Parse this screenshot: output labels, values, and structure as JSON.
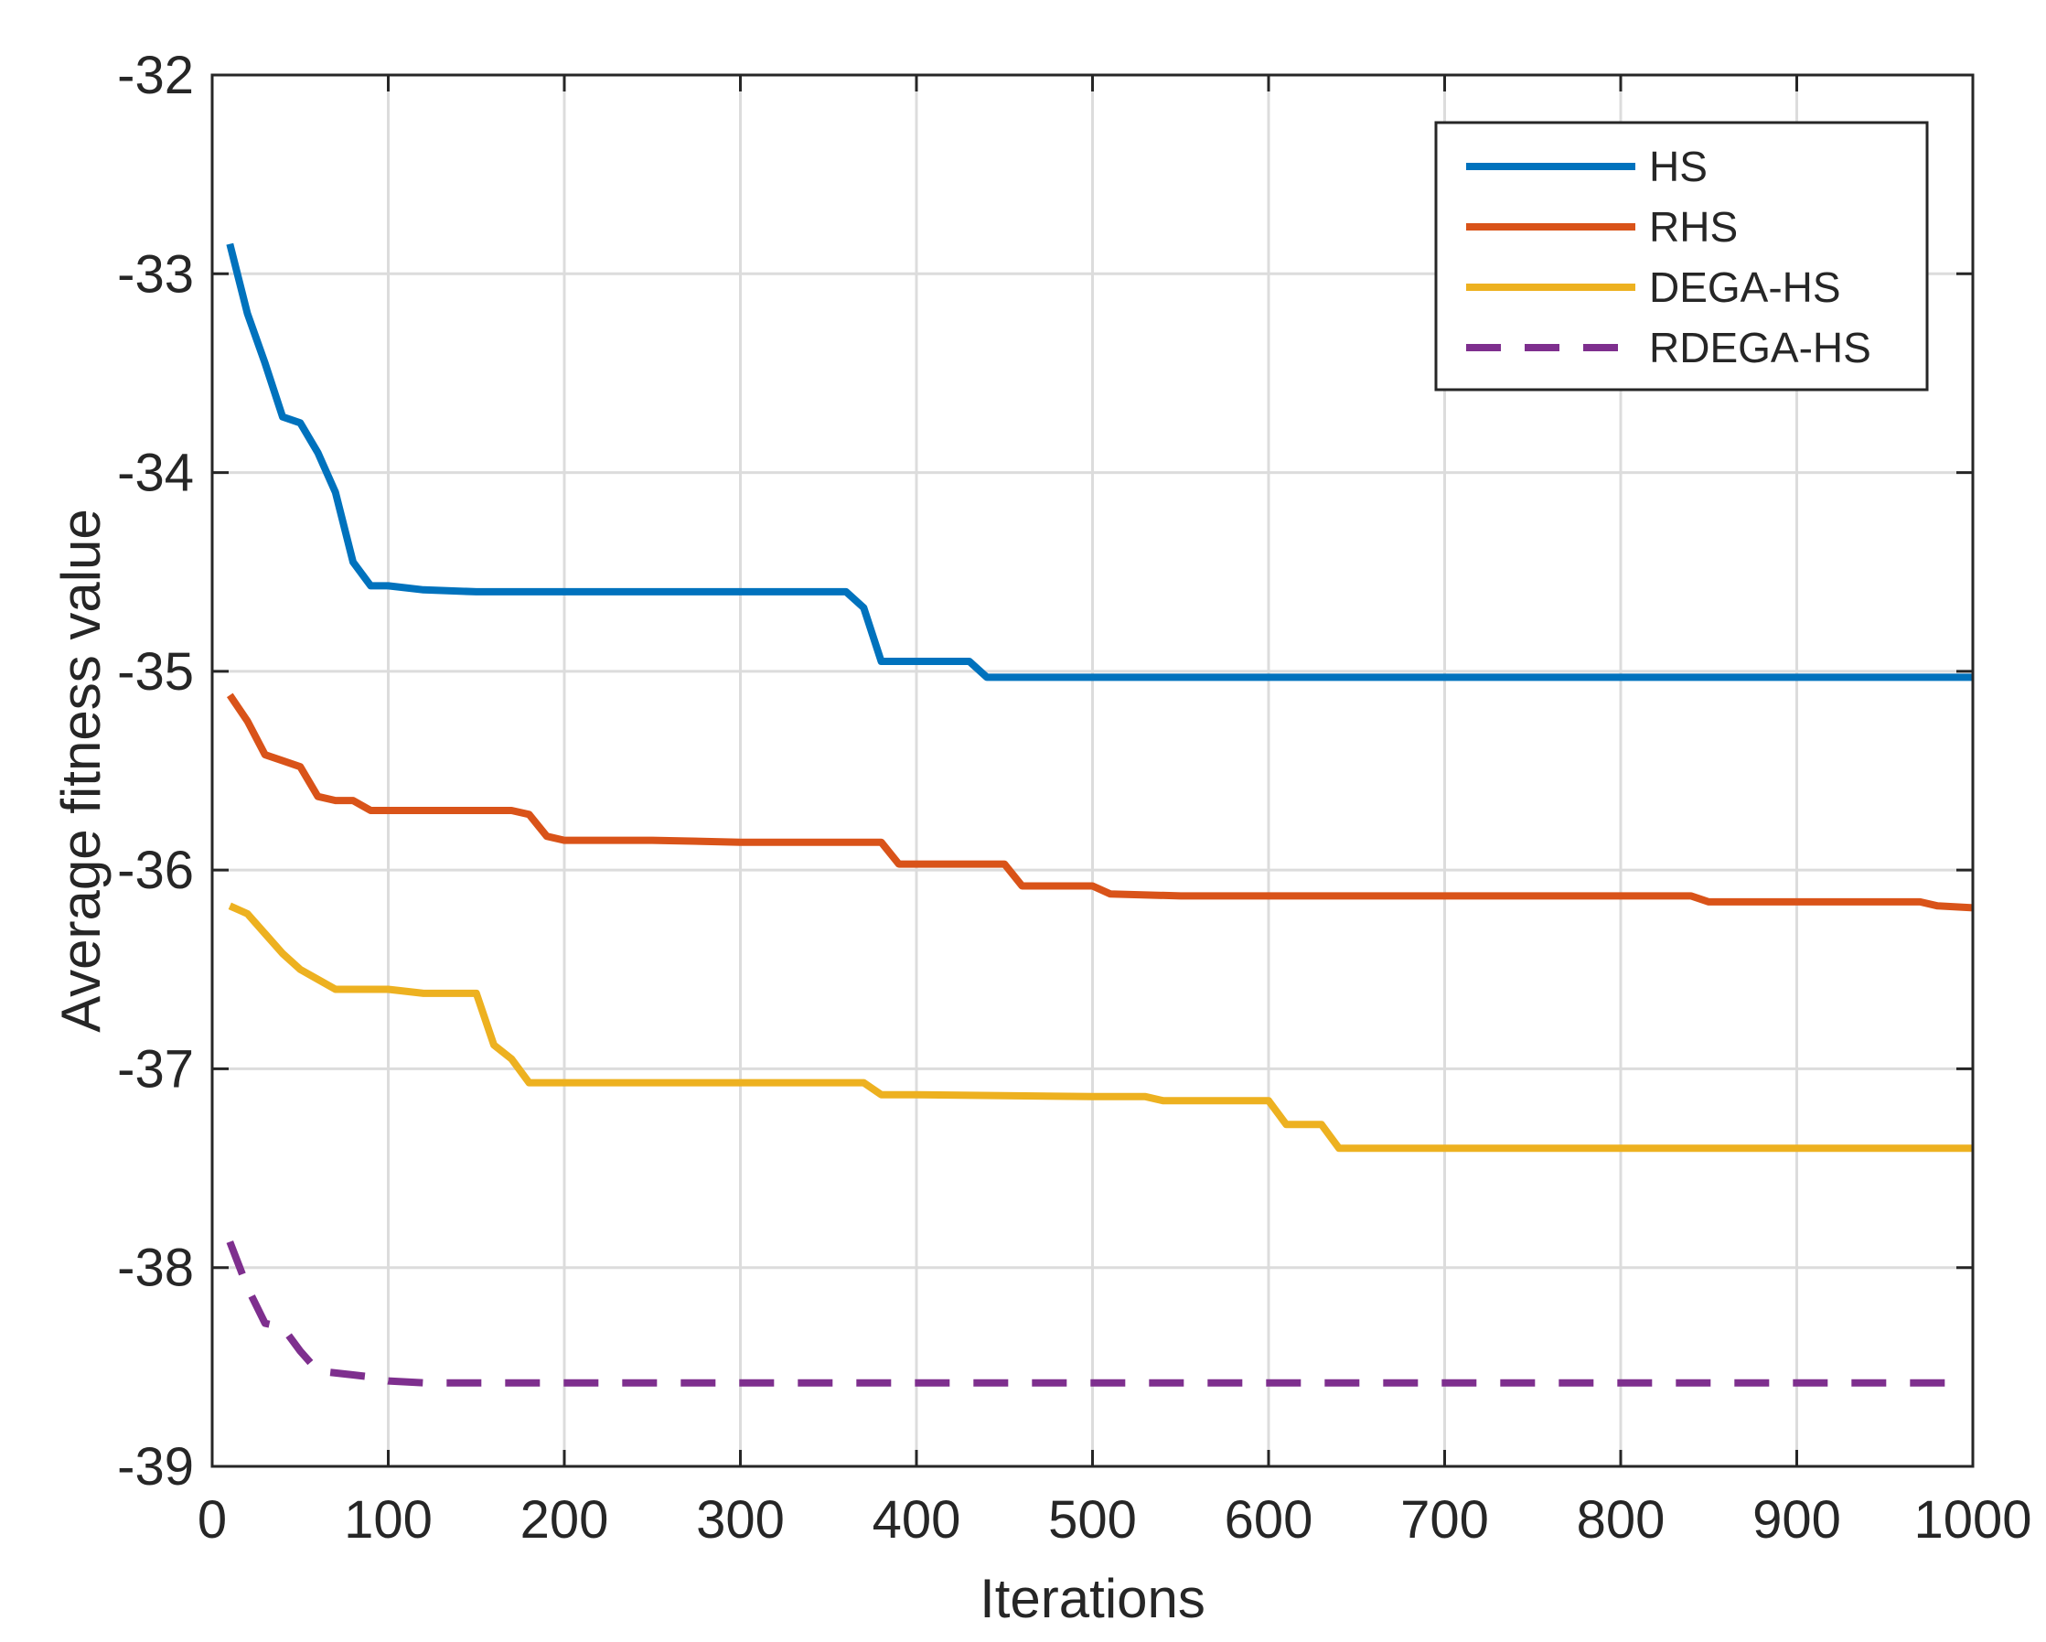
{
  "chart_data": {
    "type": "line",
    "title": "",
    "xlabel": "Iterations",
    "ylabel": "Average fitness value",
    "xlim": [
      0,
      1000
    ],
    "ylim": [
      -39,
      -32
    ],
    "xticks": [
      0,
      100,
      200,
      300,
      400,
      500,
      600,
      700,
      800,
      900,
      1000
    ],
    "yticks": [
      -39,
      -38,
      -37,
      -36,
      -35,
      -34,
      -33,
      -32
    ],
    "xtick_labels": [
      "0",
      "100",
      "200",
      "300",
      "400",
      "500",
      "600",
      "700",
      "800",
      "900",
      "1000"
    ],
    "ytick_labels": [
      "-39",
      "-38",
      "-37",
      "-36",
      "-35",
      "-34",
      "-33",
      "-32"
    ],
    "grid": true,
    "legend_position": "top-right",
    "series": [
      {
        "name": "HS",
        "color": "#0072BD",
        "style": "solid",
        "x": [
          10,
          20,
          30,
          40,
          50,
          60,
          70,
          80,
          90,
          100,
          120,
          150,
          200,
          250,
          300,
          360,
          370,
          380,
          400,
          430,
          440,
          500,
          600,
          700,
          800,
          900,
          1000
        ],
        "y": [
          -32.85,
          -33.2,
          -33.45,
          -33.72,
          -33.75,
          -33.9,
          -34.1,
          -34.45,
          -34.57,
          -34.57,
          -34.59,
          -34.6,
          -34.6,
          -34.6,
          -34.6,
          -34.6,
          -34.68,
          -34.95,
          -34.95,
          -34.95,
          -35.03,
          -35.03,
          -35.03,
          -35.03,
          -35.03,
          -35.03,
          -35.03
        ]
      },
      {
        "name": "RHS",
        "color": "#D95319",
        "style": "solid",
        "x": [
          10,
          20,
          30,
          40,
          50,
          60,
          70,
          80,
          90,
          100,
          130,
          170,
          180,
          190,
          200,
          250,
          300,
          380,
          390,
          450,
          460,
          500,
          510,
          550,
          600,
          700,
          800,
          840,
          850,
          900,
          970,
          980,
          1000
        ],
        "y": [
          -35.12,
          -35.25,
          -35.42,
          -35.45,
          -35.48,
          -35.63,
          -35.65,
          -35.65,
          -35.7,
          -35.7,
          -35.7,
          -35.7,
          -35.72,
          -35.83,
          -35.85,
          -35.85,
          -35.86,
          -35.86,
          -35.97,
          -35.97,
          -36.08,
          -36.08,
          -36.12,
          -36.13,
          -36.13,
          -36.13,
          -36.13,
          -36.13,
          -36.16,
          -36.16,
          -36.16,
          -36.18,
          -36.19
        ]
      },
      {
        "name": "DEGA-HS",
        "color": "#EDB120",
        "style": "solid",
        "x": [
          10,
          20,
          30,
          40,
          50,
          60,
          70,
          80,
          100,
          120,
          150,
          160,
          170,
          180,
          200,
          300,
          370,
          380,
          400,
          500,
          530,
          540,
          600,
          610,
          630,
          640,
          700,
          800,
          900,
          1000
        ],
        "y": [
          -36.18,
          -36.22,
          -36.32,
          -36.42,
          -36.5,
          -36.55,
          -36.6,
          -36.6,
          -36.6,
          -36.62,
          -36.62,
          -36.88,
          -36.95,
          -37.07,
          -37.07,
          -37.07,
          -37.07,
          -37.13,
          -37.13,
          -37.14,
          -37.14,
          -37.16,
          -37.16,
          -37.28,
          -37.28,
          -37.4,
          -37.4,
          -37.4,
          -37.4,
          -37.4
        ]
      },
      {
        "name": "RDEGA-HS",
        "color": "#7E2F8E",
        "style": "dashed",
        "x": [
          10,
          20,
          30,
          40,
          50,
          60,
          70,
          80,
          90,
          100,
          120,
          200,
          300,
          400,
          500,
          600,
          700,
          800,
          900,
          990
        ],
        "y": [
          -37.87,
          -38.1,
          -38.28,
          -38.3,
          -38.42,
          -38.52,
          -38.53,
          -38.54,
          -38.55,
          -38.57,
          -38.58,
          -38.58,
          -38.58,
          -38.58,
          -38.58,
          -38.58,
          -38.58,
          -38.58,
          -38.58,
          -38.58
        ]
      }
    ]
  }
}
